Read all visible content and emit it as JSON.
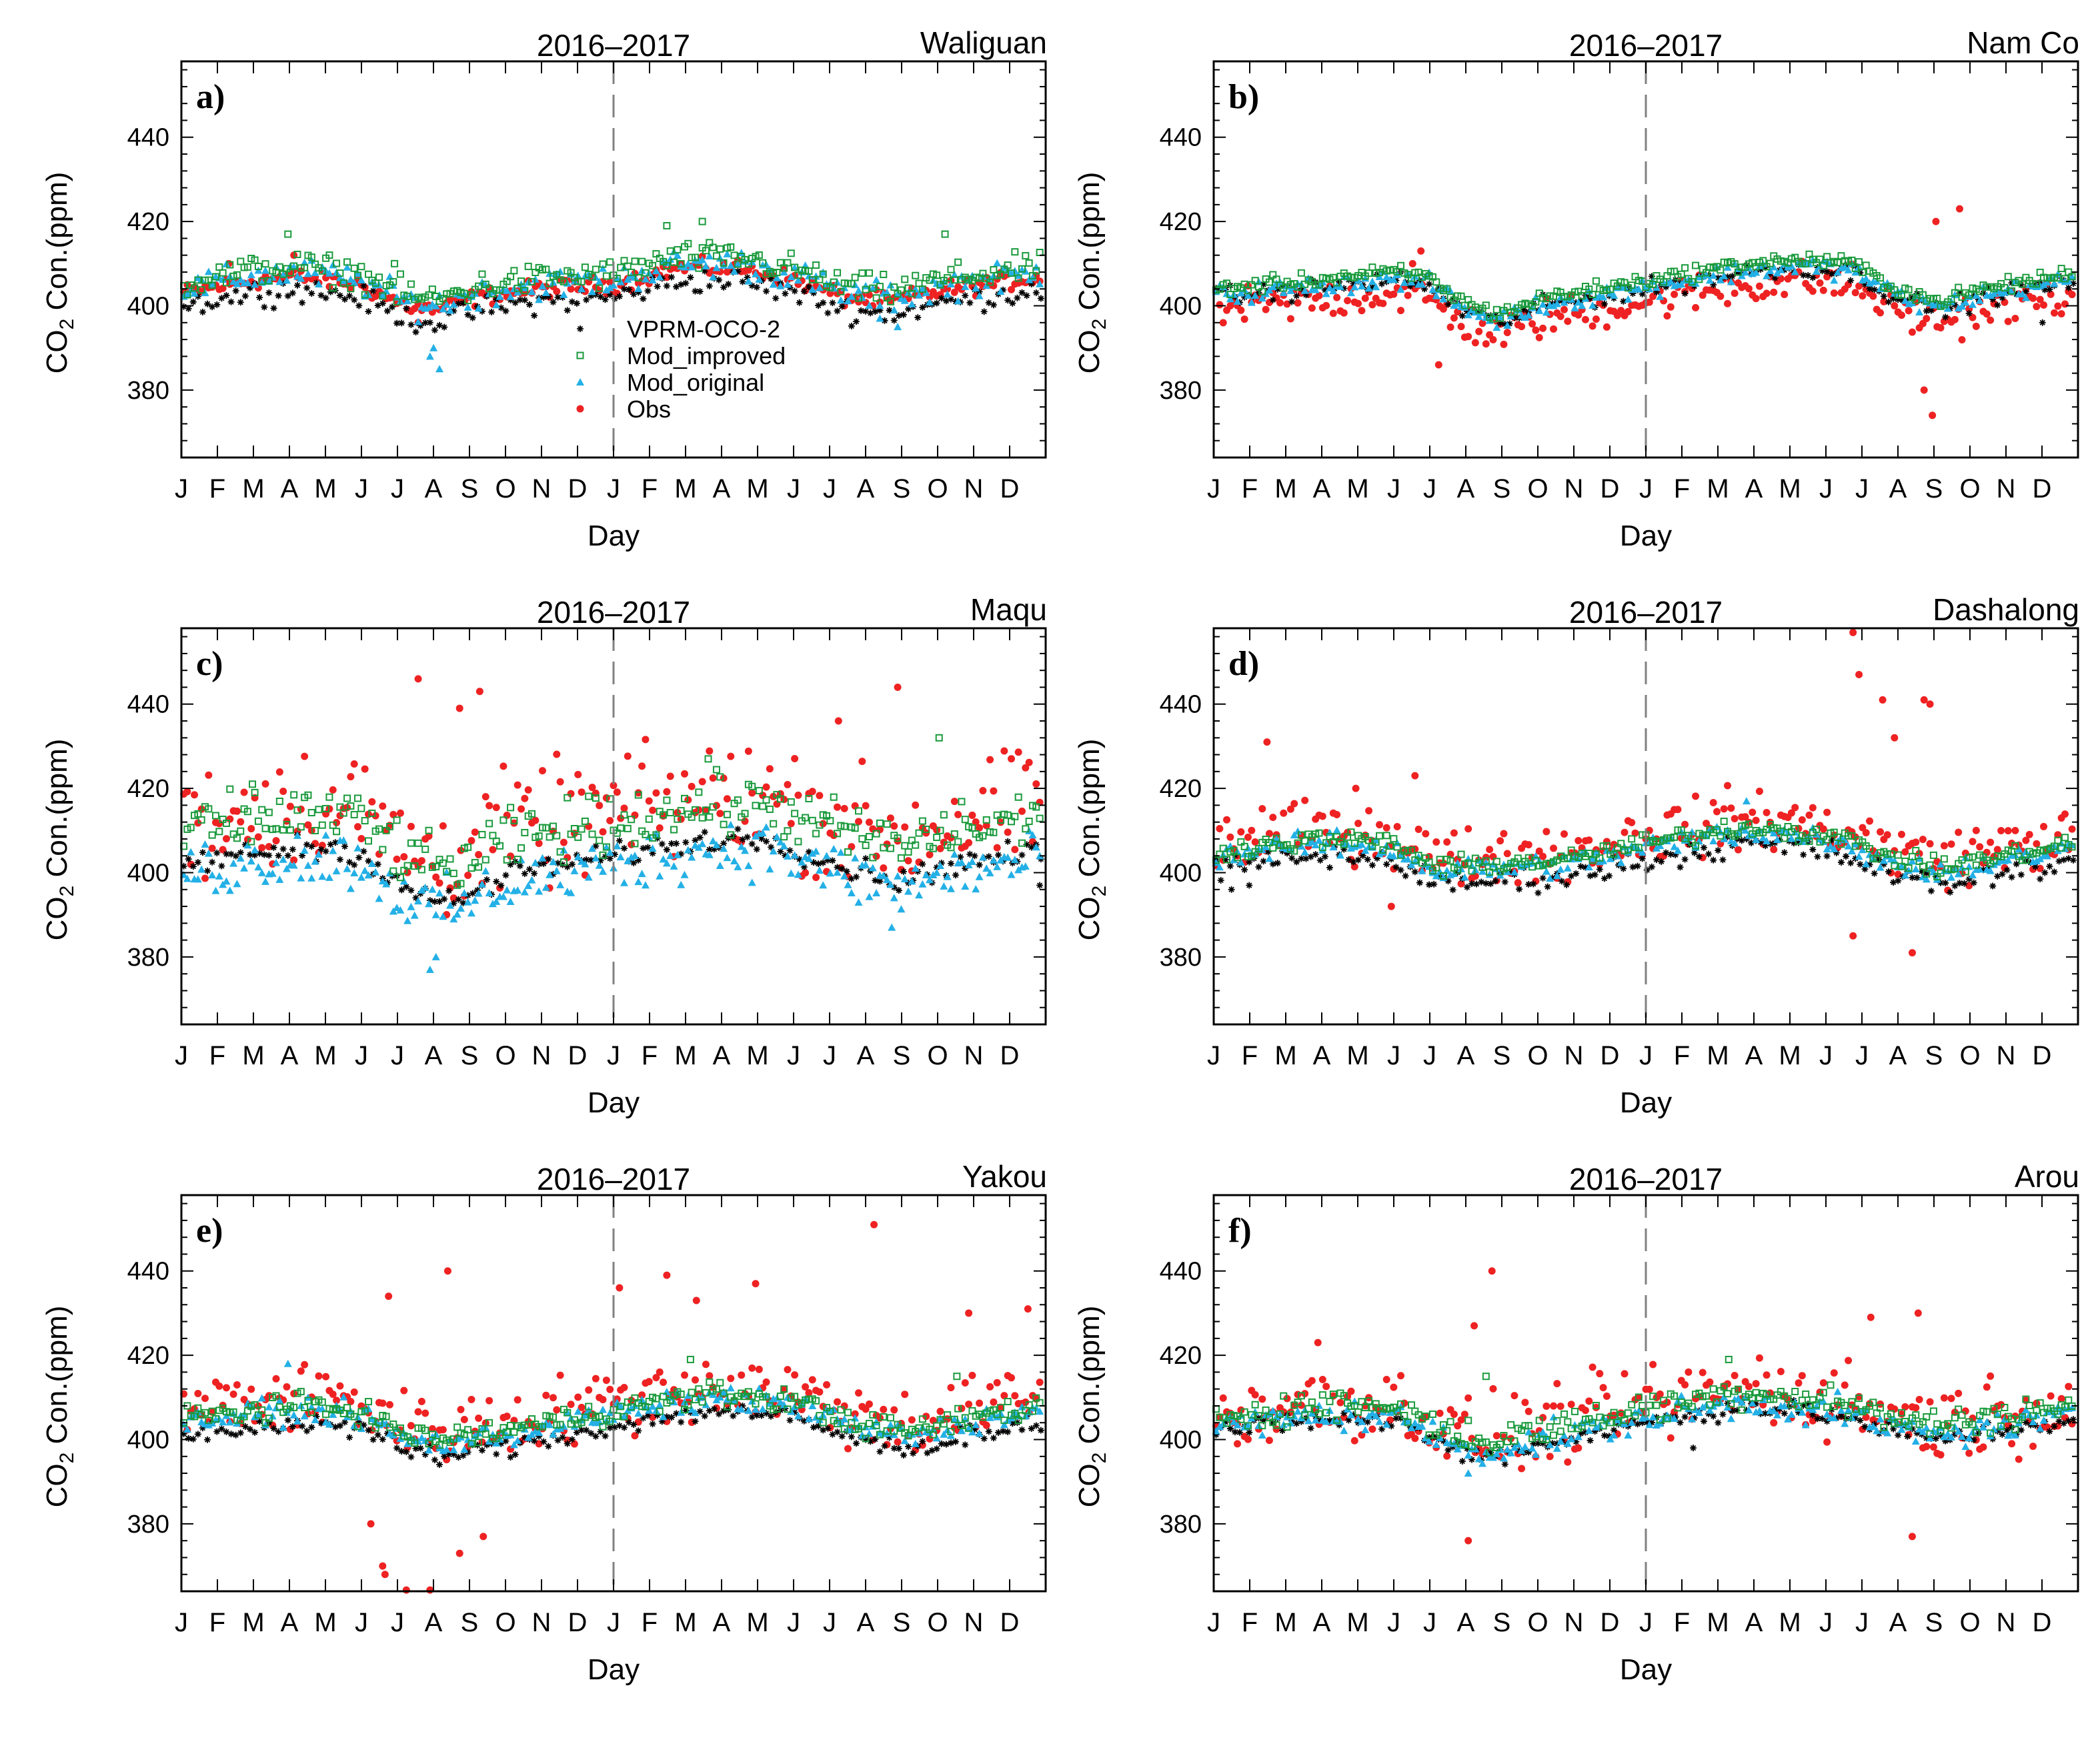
{
  "figure": {
    "period_title": "2016–2017",
    "ylabel_prefix": "CO",
    "ylabel_sub": "2",
    "ylabel_suffix": " Con.(ppm)",
    "xlabel": "Day",
    "month_ticks": [
      "J",
      "F",
      "M",
      "A",
      "M",
      "J",
      "J",
      "A",
      "S",
      "O",
      "N",
      "D",
      "J",
      "F",
      "M",
      "A",
      "M",
      "J",
      "J",
      "A",
      "S",
      "O",
      "N",
      "D"
    ],
    "y_ticks": [
      380,
      400,
      420,
      440
    ],
    "ylim": [
      364,
      458
    ],
    "xlim": [
      0,
      730
    ],
    "divider_day": 365
  },
  "legend": {
    "entries": [
      {
        "label": "VPRM-OCO-2",
        "color": "#000000",
        "marker": "asterisk"
      },
      {
        "label": "Mod_improved",
        "color": "#1a9a3c",
        "marker": "open-square"
      },
      {
        "label": "Mod_original",
        "color": "#23b0e6",
        "marker": "triangle"
      },
      {
        "label": "Obs",
        "color": "#ee2222",
        "marker": "dot"
      }
    ]
  },
  "colors": {
    "obs": "#ee2222",
    "mod_original": "#23b0e6",
    "mod_improved": "#1a9a3c",
    "vprm": "#000000",
    "divider": "#808080"
  },
  "chart_data": [
    {
      "type": "scatter",
      "panel": "a)",
      "site": "Waliguan",
      "title": "2016–2017",
      "xlabel": "Day",
      "ylabel": "CO2 Con.(ppm)",
      "xlim": [
        0,
        730
      ],
      "ylim": [
        364,
        458
      ],
      "series_params": {
        "base": [
          [
            0,
            404
          ],
          [
            60,
            407
          ],
          [
            100,
            408
          ],
          [
            150,
            406
          ],
          [
            190,
            401
          ],
          [
            215,
            400
          ],
          [
            250,
            403
          ],
          [
            300,
            405
          ],
          [
            365,
            406
          ],
          [
            420,
            410
          ],
          [
            470,
            410
          ],
          [
            520,
            407
          ],
          [
            560,
            403
          ],
          [
            600,
            402
          ],
          [
            650,
            405
          ],
          [
            730,
            408
          ]
        ],
        "obs": {
          "offset": -1,
          "spread": 1.8,
          "outliers": [
            [
              40,
              410
            ],
            [
              95,
              412
            ],
            [
              200,
              396
            ]
          ]
        },
        "mod_original": {
          "offset": 0,
          "spread": 3,
          "outliers": [
            [
              210,
              388
            ],
            [
              213,
              390
            ],
            [
              218,
              385
            ],
            [
              605,
              395
            ],
            [
              590,
              397
            ]
          ]
        },
        "mod_improved": {
          "offset": 1.5,
          "spread": 3,
          "outliers": [
            [
              90,
              417
            ],
            [
              410,
              419
            ],
            [
              440,
              420
            ],
            [
              645,
              417
            ],
            [
              180,
              410
            ]
          ]
        },
        "vprm": {
          "offset": -4,
          "spread": 2.5,
          "outliers": []
        }
      }
    },
    {
      "type": "scatter",
      "panel": "b)",
      "site": "Nam Co",
      "title": "2016–2017",
      "xlabel": "Day",
      "ylabel": "CO2 Con.(ppm)",
      "xlim": [
        0,
        730
      ],
      "ylim": [
        364,
        458
      ],
      "series_params": {
        "base": [
          [
            0,
            403
          ],
          [
            80,
            405
          ],
          [
            150,
            407
          ],
          [
            180,
            406
          ],
          [
            210,
            400
          ],
          [
            240,
            397
          ],
          [
            280,
            401
          ],
          [
            365,
            405
          ],
          [
            450,
            409
          ],
          [
            500,
            410
          ],
          [
            540,
            409
          ],
          [
            570,
            404
          ],
          [
            610,
            400
          ],
          [
            650,
            403
          ],
          [
            730,
            407
          ]
        ],
        "obs": {
          "offset": -4,
          "spread": 4,
          "outliers": [
            [
              175,
              413
            ],
            [
              168,
              410
            ],
            [
              600,
              380
            ],
            [
              607,
              374
            ],
            [
              610,
              420
            ],
            [
              630,
              423
            ],
            [
              190,
              386
            ]
          ]
        },
        "mod_original": {
          "offset": -0.5,
          "spread": 2,
          "outliers": []
        },
        "mod_improved": {
          "offset": 1,
          "spread": 1.5,
          "outliers": []
        },
        "vprm": {
          "offset": -1,
          "spread": 2,
          "outliers": [
            [
              700,
              396
            ]
          ]
        }
      }
    },
    {
      "type": "scatter",
      "panel": "c)",
      "site": "Maqu",
      "title": "2016–2017",
      "xlabel": "Day",
      "ylabel": "CO2 Con.(ppm)",
      "xlim": [
        0,
        730
      ],
      "ylim": [
        364,
        458
      ],
      "series_params": {
        "base": [
          [
            0,
            404
          ],
          [
            100,
            408
          ],
          [
            150,
            407
          ],
          [
            180,
            400
          ],
          [
            210,
            395
          ],
          [
            240,
            396
          ],
          [
            280,
            402
          ],
          [
            365,
            406
          ],
          [
            450,
            410
          ],
          [
            500,
            410
          ],
          [
            540,
            405
          ],
          [
            580,
            402
          ],
          [
            610,
            400
          ],
          [
            650,
            404
          ],
          [
            730,
            407
          ]
        ],
        "obs": {
          "offset": 8,
          "spread": 12,
          "outliers": [
            [
              200,
              446
            ],
            [
              235,
              439
            ],
            [
              252,
              443
            ],
            [
              555,
              436
            ],
            [
              605,
              444
            ]
          ]
        },
        "mod_original": {
          "offset": -4,
          "spread": 6,
          "outliers": [
            [
              210,
              377
            ],
            [
              215,
              380
            ],
            [
              600,
              387
            ]
          ]
        },
        "mod_improved": {
          "offset": 6,
          "spread": 6,
          "outliers": [
            [
              60,
              421
            ],
            [
              445,
              427
            ],
            [
              640,
              432
            ]
          ]
        },
        "vprm": {
          "offset": -2,
          "spread": 2.5,
          "outliers": [
            [
              725,
              397
            ]
          ]
        }
      }
    },
    {
      "type": "scatter",
      "panel": "d)",
      "site": "Dashalong",
      "title": "2016–2017",
      "xlabel": "Day",
      "ylabel": "CO2 Con.(ppm)",
      "xlim": [
        0,
        730
      ],
      "ylim": [
        364,
        458
      ],
      "series_params": {
        "base": [
          [
            0,
            404
          ],
          [
            90,
            407
          ],
          [
            150,
            406
          ],
          [
            190,
            400
          ],
          [
            230,
            401
          ],
          [
            300,
            402
          ],
          [
            365,
            406
          ],
          [
            450,
            410
          ],
          [
            520,
            408
          ],
          [
            570,
            403
          ],
          [
            610,
            400
          ],
          [
            650,
            402
          ],
          [
            730,
            406
          ]
        ],
        "obs": {
          "offset": 3,
          "spread": 6,
          "outliers": [
            [
              45,
              431
            ],
            [
              120,
              420
            ],
            [
              170,
              423
            ],
            [
              540,
              457
            ],
            [
              545,
              447
            ],
            [
              565,
              441
            ],
            [
              575,
              432
            ],
            [
              600,
              441
            ],
            [
              605,
              440
            ],
            [
              540,
              385
            ],
            [
              590,
              381
            ],
            [
              150,
              392
            ]
          ]
        },
        "mod_original": {
          "offset": 0,
          "spread": 2.5,
          "outliers": [
            [
              450,
              417
            ]
          ]
        },
        "mod_improved": {
          "offset": 1,
          "spread": 2,
          "outliers": []
        },
        "vprm": {
          "offset": -3,
          "spread": 2.5,
          "outliers": [
            [
              15,
              396
            ],
            [
              30,
              397
            ]
          ]
        }
      }
    },
    {
      "type": "scatter",
      "panel": "e)",
      "site": "Yakou",
      "title": "2016–2017",
      "xlabel": "Day",
      "ylabel": "CO2 Con.(ppm)",
      "xlim": [
        0,
        730
      ],
      "ylim": [
        364,
        458
      ],
      "series_params": {
        "base": [
          [
            0,
            404
          ],
          [
            100,
            407
          ],
          [
            150,
            406
          ],
          [
            190,
            400
          ],
          [
            220,
            399
          ],
          [
            270,
            401
          ],
          [
            365,
            406
          ],
          [
            450,
            410
          ],
          [
            520,
            408
          ],
          [
            580,
            402
          ],
          [
            620,
            401
          ],
          [
            680,
            405
          ],
          [
            730,
            407
          ]
        ],
        "obs": {
          "offset": 3,
          "spread": 7,
          "outliers": [
            [
              160,
              380
            ],
            [
              170,
              370
            ],
            [
              172,
              368
            ],
            [
              175,
              434
            ],
            [
              225,
              440
            ],
            [
              235,
              373
            ],
            [
              255,
              377
            ],
            [
              370,
              436
            ],
            [
              410,
              439
            ],
            [
              435,
              433
            ],
            [
              485,
              437
            ],
            [
              585,
              451
            ],
            [
              665,
              430
            ],
            [
              715,
              431
            ],
            [
              190,
              364
            ],
            [
              210,
              364
            ]
          ]
        },
        "mod_original": {
          "offset": 0,
          "spread": 2.5,
          "outliers": [
            [
              90,
              418
            ]
          ]
        },
        "mod_improved": {
          "offset": 1,
          "spread": 2.5,
          "outliers": [
            [
              430,
              419
            ],
            [
              655,
              415
            ]
          ]
        },
        "vprm": {
          "offset": -3,
          "spread": 2,
          "outliers": []
        }
      }
    },
    {
      "type": "scatter",
      "panel": "f)",
      "site": "Arou",
      "title": "2016–2017",
      "xlabel": "Day",
      "ylabel": "CO2 Con.(ppm)",
      "xlim": [
        0,
        730
      ],
      "ylim": [
        364,
        458
      ],
      "series_params": {
        "base": [
          [
            0,
            404
          ],
          [
            100,
            407
          ],
          [
            160,
            406
          ],
          [
            200,
            400
          ],
          [
            230,
            398
          ],
          [
            280,
            401
          ],
          [
            365,
            406
          ],
          [
            450,
            410
          ],
          [
            520,
            408
          ],
          [
            570,
            404
          ],
          [
            610,
            402
          ],
          [
            660,
            404
          ],
          [
            730,
            407
          ]
        ],
        "obs": {
          "offset": 2,
          "spread": 8,
          "outliers": [
            [
              88,
              423
            ],
            [
              220,
              427
            ],
            [
              235,
              440
            ],
            [
              215,
              376
            ],
            [
              555,
              429
            ],
            [
              595,
              430
            ],
            [
              590,
              377
            ],
            [
              20,
              399
            ]
          ]
        },
        "mod_original": {
          "offset": -1,
          "spread": 3,
          "outliers": [
            [
              215,
              392
            ]
          ]
        },
        "mod_improved": {
          "offset": 1.5,
          "spread": 3,
          "outliers": [
            [
              435,
              419
            ],
            [
              230,
              415
            ]
          ]
        },
        "vprm": {
          "offset": -2,
          "spread": 2,
          "outliers": [
            [
              405,
              398
            ]
          ]
        }
      }
    }
  ]
}
